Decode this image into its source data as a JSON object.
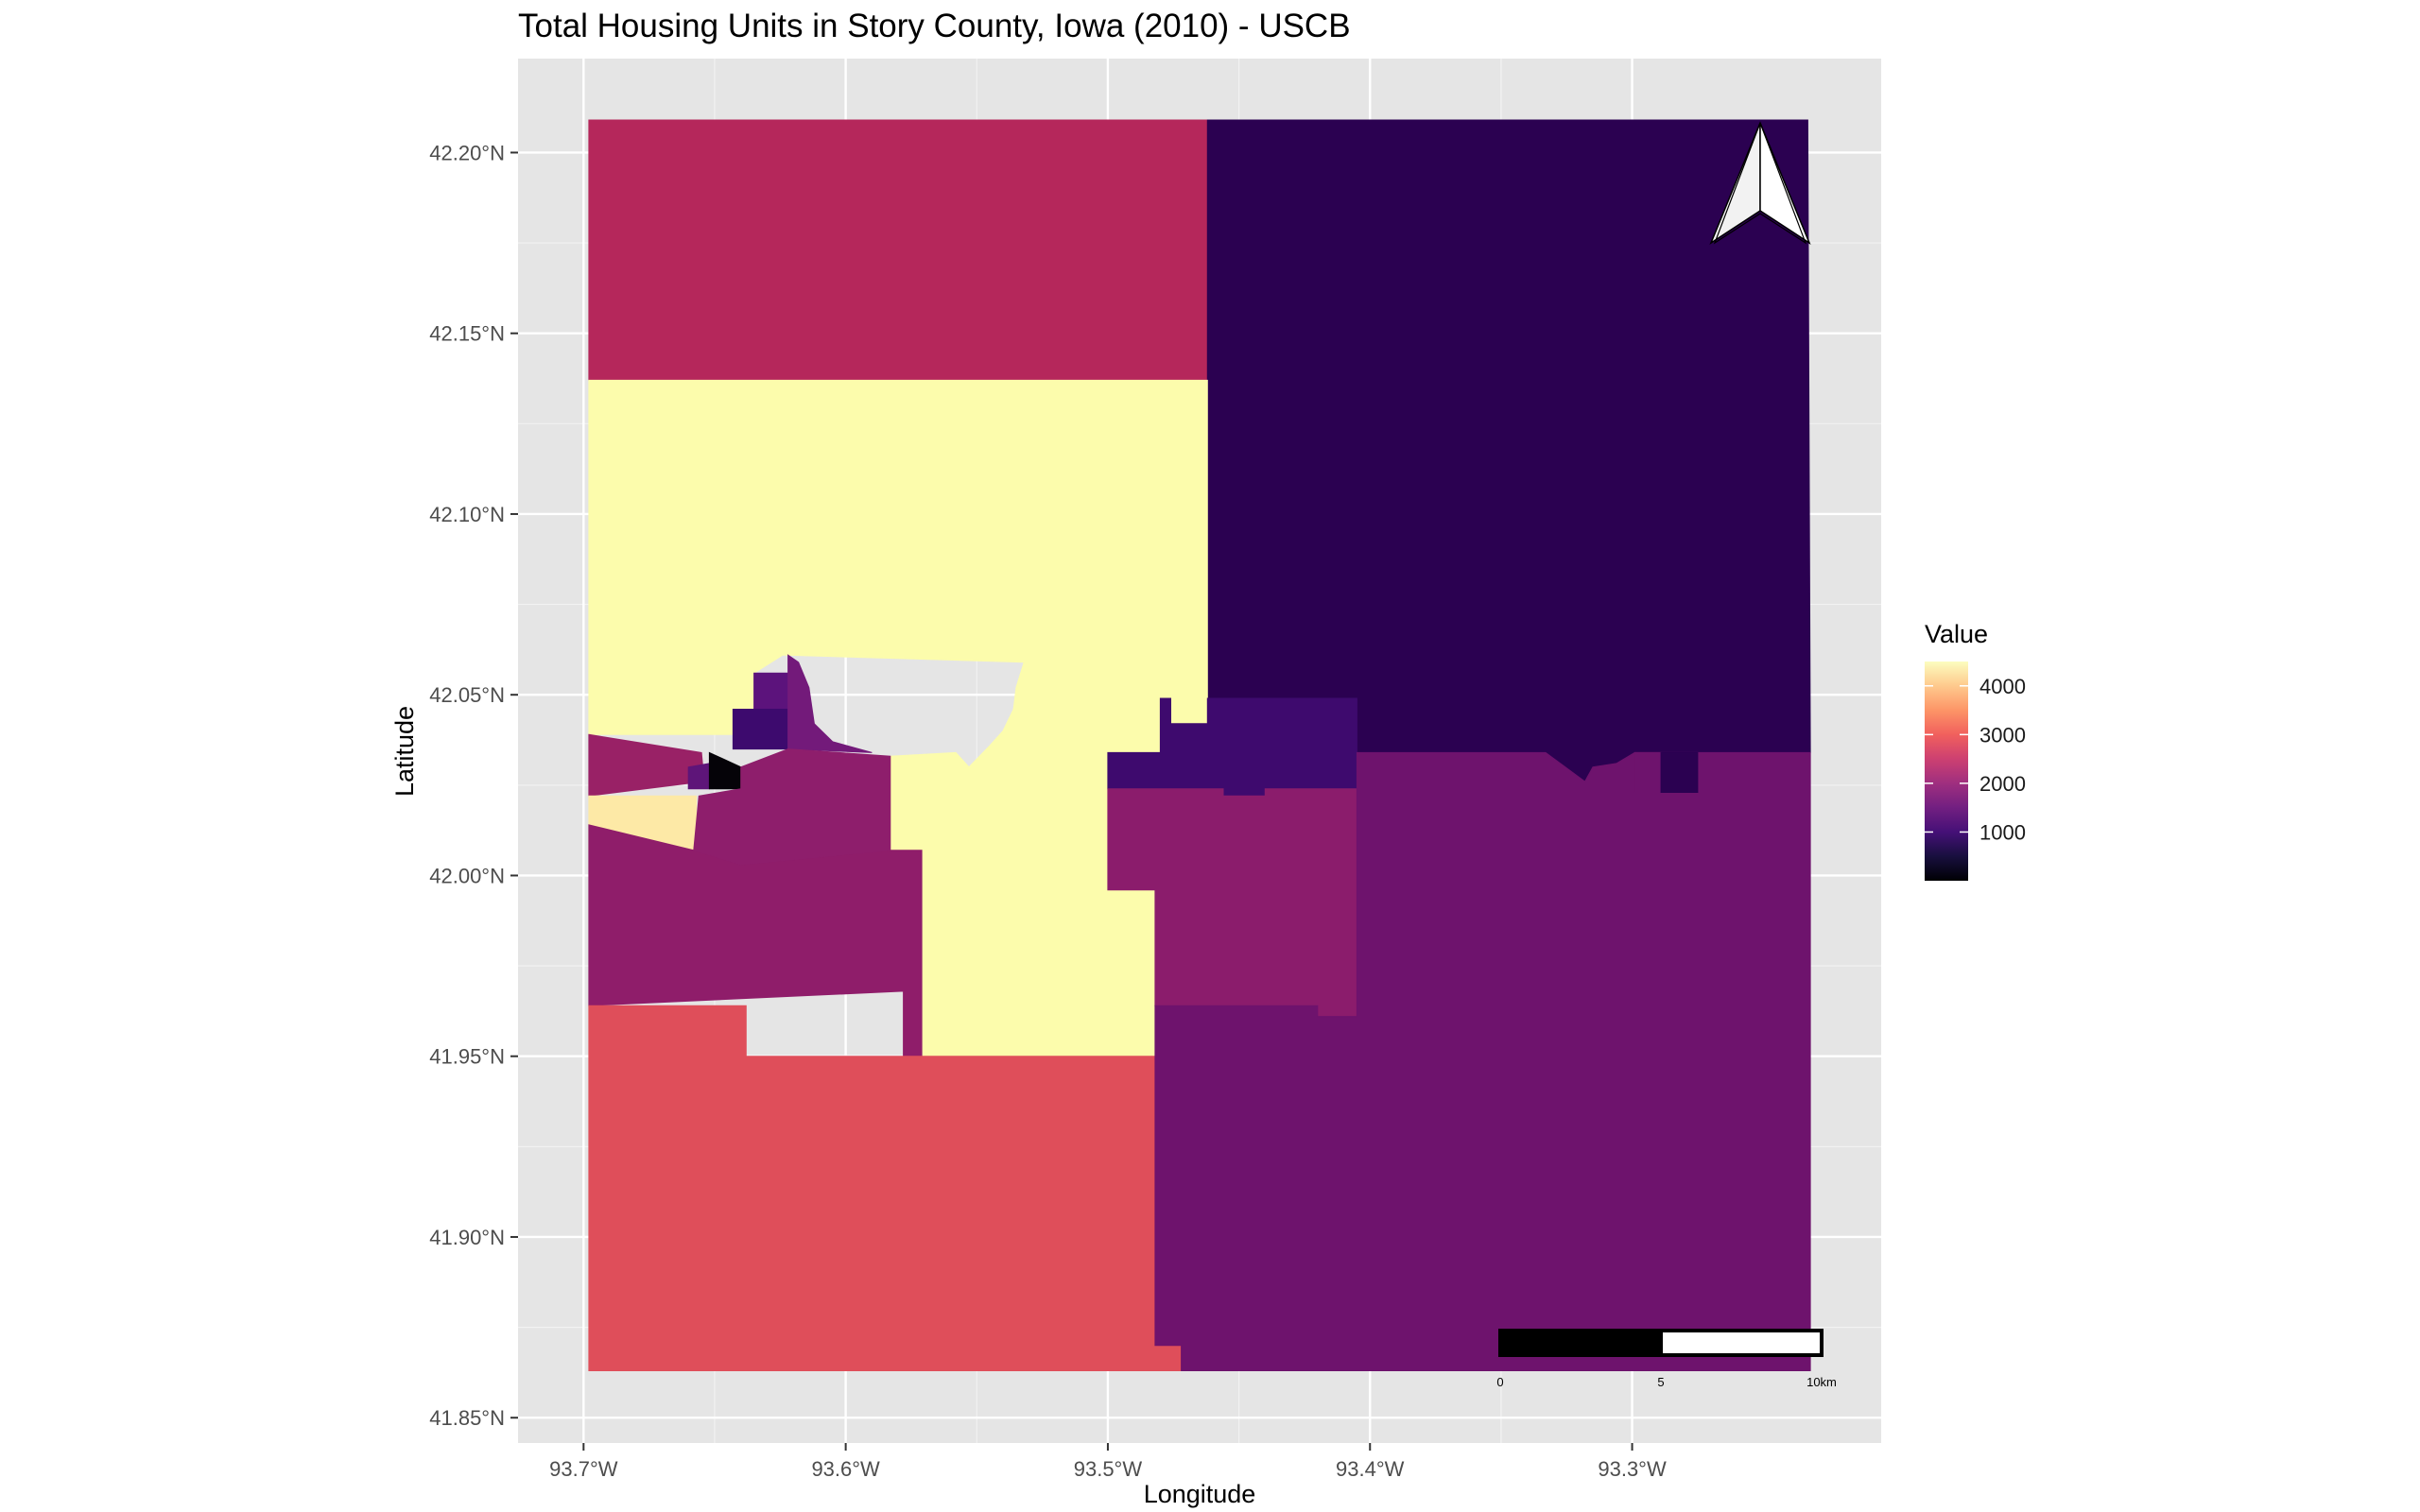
{
  "title": "Total Housing Units in Story County, Iowa (2010) - USCB",
  "map": {
    "x_axis": {
      "title": "Longitude",
      "range": [
        -93.725,
        -93.205
      ],
      "ticks": [
        {
          "value": -93.7,
          "label": "93.7°W"
        },
        {
          "value": -93.6,
          "label": "93.6°W"
        },
        {
          "value": -93.5,
          "label": "93.5°W"
        },
        {
          "value": -93.4,
          "label": "93.4°W"
        },
        {
          "value": -93.3,
          "label": "93.3°W"
        }
      ]
    },
    "y_axis": {
      "title": "Latitude",
      "range": [
        41.843,
        42.226
      ],
      "ticks": [
        {
          "value": 42.2,
          "label": "42.20°N"
        },
        {
          "value": 42.15,
          "label": "42.15°N"
        },
        {
          "value": 42.1,
          "label": "42.10°N"
        },
        {
          "value": 42.05,
          "label": "42.05°N"
        },
        {
          "value": 42.0,
          "label": "42.00°N"
        },
        {
          "value": 41.95,
          "label": "41.95°N"
        },
        {
          "value": 41.9,
          "label": "41.90°N"
        },
        {
          "value": 41.85,
          "label": "41.85°N"
        }
      ]
    },
    "grid": true,
    "background_color": "#e5e5e5",
    "legend": {
      "title": "Value",
      "position": "right",
      "colormap": "magma",
      "range": [
        0,
        4500
      ],
      "breaks": [
        {
          "value": 1000,
          "label": "1000"
        },
        {
          "value": 2000,
          "label": "2000"
        },
        {
          "value": 3000,
          "label": "3000"
        },
        {
          "value": 4000,
          "label": "4000"
        }
      ],
      "colors": [
        "#000004",
        "#180f3e",
        "#451077",
        "#721f81",
        "#9f2f7f",
        "#cd4071",
        "#f1605d",
        "#fd9567",
        "#fec98d",
        "#fcfdbf"
      ]
    },
    "north_arrow": {
      "icon": "north-arrow-icon",
      "position": "top-right"
    },
    "scale_bar": {
      "position": "bottom-right",
      "labels": [
        "0",
        "5",
        "10km"
      ]
    },
    "regions": [
      {
        "id": "north-west",
        "value": 2300,
        "color": "#b5275b",
        "coords": [
          [
            -93.698,
            42.209
          ],
          [
            -93.462,
            42.209
          ],
          [
            -93.462,
            42.137
          ],
          [
            -93.698,
            42.137
          ]
        ]
      },
      {
        "id": "north-east",
        "value": 700,
        "color": "#2b0151",
        "coords": [
          [
            -93.462,
            42.209
          ],
          [
            -93.233,
            42.209
          ],
          [
            -93.232,
            42.034
          ],
          [
            -93.299,
            42.034
          ],
          [
            -93.306,
            42.031
          ],
          [
            -93.315,
            42.03
          ],
          [
            -93.318,
            42.026
          ],
          [
            -93.333,
            42.034
          ],
          [
            -93.405,
            42.034
          ],
          [
            -93.405,
            42.049
          ],
          [
            -93.462,
            42.049
          ]
        ]
      },
      {
        "id": "central-north",
        "value": 4500,
        "color": "#fcfcac",
        "coords": [
          [
            -93.698,
            42.137
          ],
          [
            -93.462,
            42.137
          ],
          [
            -93.462,
            42.042
          ],
          [
            -93.476,
            42.042
          ],
          [
            -93.476,
            42.049
          ],
          [
            -93.48,
            42.049
          ],
          [
            -93.48,
            42.034
          ],
          [
            -93.5,
            42.034
          ],
          [
            -93.5,
            41.996
          ],
          [
            -93.482,
            41.996
          ],
          [
            -93.482,
            41.95
          ],
          [
            -93.571,
            41.95
          ],
          [
            -93.571,
            42.007
          ],
          [
            -93.583,
            42.007
          ],
          [
            -93.583,
            42.033
          ],
          [
            -93.558,
            42.034
          ],
          [
            -93.553,
            42.03
          ],
          [
            -93.545,
            42.036
          ],
          [
            -93.54,
            42.04
          ],
          [
            -93.536,
            42.046
          ],
          [
            -93.535,
            42.052
          ],
          [
            -93.532,
            42.059
          ],
          [
            -93.624,
            42.061
          ],
          [
            -93.635,
            42.056
          ],
          [
            -93.635,
            42.039
          ],
          [
            -93.698,
            42.039
          ]
        ]
      },
      {
        "id": "far-west-strip",
        "value": 2000,
        "color": "#992166",
        "coords": [
          [
            -93.698,
            42.039
          ],
          [
            -93.655,
            42.034
          ],
          [
            -93.654,
            42.026
          ],
          [
            -93.698,
            42.022
          ]
        ]
      },
      {
        "id": "ames-west-bright",
        "value": 4200,
        "color": "#fde9a6",
        "coords": [
          [
            -93.698,
            42.022
          ],
          [
            -93.657,
            42.022
          ],
          [
            -93.657,
            42.007
          ],
          [
            -93.698,
            42.007
          ]
        ]
      },
      {
        "id": "ames-west-mid",
        "value": 1800,
        "color": "#8f1d6a",
        "coords": [
          [
            -93.698,
            42.014
          ],
          [
            -93.658,
            42.007
          ],
          [
            -93.64,
            42.003
          ],
          [
            -93.583,
            42.007
          ],
          [
            -93.571,
            42.007
          ],
          [
            -93.571,
            41.95
          ],
          [
            -93.578,
            41.95
          ],
          [
            -93.578,
            41.968
          ],
          [
            -93.698,
            41.964
          ]
        ]
      },
      {
        "id": "south-west",
        "value": 3000,
        "color": "#df4e5a",
        "coords": [
          [
            -93.698,
            41.964
          ],
          [
            -93.638,
            41.964
          ],
          [
            -93.638,
            41.95
          ],
          [
            -93.482,
            41.95
          ],
          [
            -93.482,
            41.87
          ],
          [
            -93.472,
            41.87
          ],
          [
            -93.472,
            41.863
          ],
          [
            -93.698,
            41.863
          ]
        ]
      },
      {
        "id": "ames-north-1",
        "value": 1400,
        "color": "#5c137c",
        "coords": [
          [
            -93.635,
            42.056
          ],
          [
            -93.622,
            42.056
          ],
          [
            -93.622,
            42.046
          ],
          [
            -93.635,
            42.046
          ]
        ]
      },
      {
        "id": "ames-north-2",
        "value": 1000,
        "color": "#3d0a6e",
        "coords": [
          [
            -93.643,
            42.046
          ],
          [
            -93.622,
            42.046
          ],
          [
            -93.622,
            42.035
          ],
          [
            -93.643,
            42.035
          ]
        ]
      },
      {
        "id": "ames-north-3",
        "value": 1600,
        "color": "#731a7a",
        "coords": [
          [
            -93.622,
            42.061
          ],
          [
            -93.618,
            42.059
          ],
          [
            -93.614,
            42.052
          ],
          [
            -93.612,
            42.042
          ],
          [
            -93.605,
            42.037
          ],
          [
            -93.59,
            42.034
          ],
          [
            -93.622,
            42.035
          ]
        ]
      },
      {
        "id": "ames-center-1",
        "value": 1400,
        "color": "#5e1579",
        "coords": [
          [
            -93.66,
            42.03
          ],
          [
            -93.652,
            42.031
          ],
          [
            -93.652,
            42.024
          ],
          [
            -93.66,
            42.024
          ]
        ]
      },
      {
        "id": "ames-campus",
        "value": 50,
        "color": "#050308",
        "coords": [
          [
            -93.652,
            42.034
          ],
          [
            -93.64,
            42.03
          ],
          [
            -93.64,
            42.024
          ],
          [
            -93.652,
            42.024
          ]
        ]
      },
      {
        "id": "ames-small-black",
        "value": 50,
        "color": "#050308",
        "coords": [
          [
            -93.647,
            42.016
          ],
          [
            -93.64,
            42.016
          ],
          [
            -93.64,
            42.012
          ],
          [
            -93.647,
            42.012
          ]
        ]
      },
      {
        "id": "ames-center-2",
        "value": 1800,
        "color": "#8e1e6c",
        "coords": [
          [
            -93.64,
            42.03
          ],
          [
            -93.622,
            42.035
          ],
          [
            -93.583,
            42.033
          ],
          [
            -93.583,
            42.007
          ],
          [
            -93.64,
            42.003
          ],
          [
            -93.658,
            42.007
          ],
          [
            -93.656,
            42.022
          ],
          [
            -93.64,
            42.024
          ]
        ]
      },
      {
        "id": "east-upper-band",
        "value": 1000,
        "color": "#3e0a6e",
        "coords": [
          [
            -93.5,
            42.034
          ],
          [
            -93.48,
            42.034
          ],
          [
            -93.48,
            42.049
          ],
          [
            -93.476,
            42.049
          ],
          [
            -93.476,
            42.042
          ],
          [
            -93.462,
            42.042
          ],
          [
            -93.462,
            42.049
          ],
          [
            -93.405,
            42.049
          ],
          [
            -93.405,
            42.024
          ],
          [
            -93.44,
            42.024
          ],
          [
            -93.44,
            42.022
          ],
          [
            -93.456,
            42.022
          ],
          [
            -93.456,
            42.024
          ],
          [
            -93.5,
            42.024
          ]
        ]
      },
      {
        "id": "east-mid-block",
        "value": 1800,
        "color": "#8b1c6c",
        "coords": [
          [
            -93.5,
            42.024
          ],
          [
            -93.456,
            42.024
          ],
          [
            -93.456,
            42.022
          ],
          [
            -93.44,
            42.022
          ],
          [
            -93.44,
            42.024
          ],
          [
            -93.405,
            42.024
          ],
          [
            -93.405,
            41.961
          ],
          [
            -93.42,
            41.961
          ],
          [
            -93.42,
            41.964
          ],
          [
            -93.482,
            41.964
          ],
          [
            -93.482,
            41.996
          ],
          [
            -93.5,
            41.996
          ]
        ]
      },
      {
        "id": "south-east",
        "value": 1600,
        "color": "#6e136d",
        "coords": [
          [
            -93.405,
            42.034
          ],
          [
            -93.333,
            42.034
          ],
          [
            -93.318,
            42.026
          ],
          [
            -93.315,
            42.03
          ],
          [
            -93.306,
            42.031
          ],
          [
            -93.299,
            42.034
          ],
          [
            -93.232,
            42.034
          ],
          [
            -93.232,
            41.863
          ],
          [
            -93.472,
            41.863
          ],
          [
            -93.472,
            41.87
          ],
          [
            -93.482,
            41.87
          ],
          [
            -93.482,
            41.964
          ],
          [
            -93.42,
            41.964
          ],
          [
            -93.42,
            41.961
          ],
          [
            -93.405,
            41.961
          ]
        ]
      },
      {
        "id": "east-notch-1",
        "value": 1600,
        "color": "#6e136d",
        "coords": [
          [
            -93.299,
            42.034
          ],
          [
            -93.289,
            42.034
          ],
          [
            -93.289,
            42.023
          ],
          [
            -93.299,
            42.023
          ]
        ]
      },
      {
        "id": "east-notch-fill",
        "value": 700,
        "color": "#2b0151",
        "coords": [
          [
            -93.289,
            42.034
          ],
          [
            -93.275,
            42.034
          ],
          [
            -93.275,
            42.023
          ],
          [
            -93.289,
            42.023
          ]
        ]
      }
    ]
  }
}
